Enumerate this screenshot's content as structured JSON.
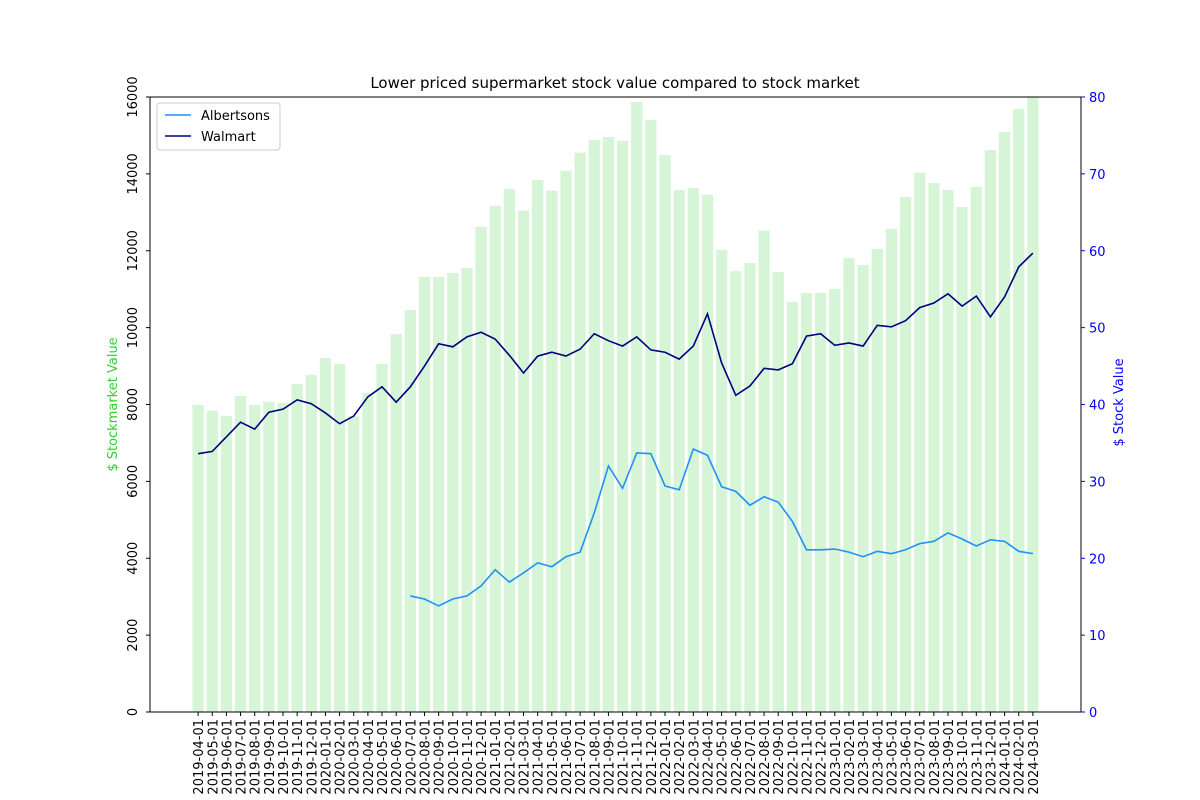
{
  "chart_data": {
    "type": "bar",
    "title": "Lower priced supermarket stock value compared to stock market",
    "ylabel": "$ Stockmarket Value",
    "y2label": "$ Stock Value",
    "ylabel_color": "#32cd32",
    "y2_color": "#0000ff",
    "color": "#d6f5d6",
    "legend": "upper left",
    "categories": [
      "2019-04-01",
      "2019-05-01",
      "2019-06-01",
      "2019-07-01",
      "2019-08-01",
      "2019-09-01",
      "2019-10-01",
      "2019-11-01",
      "2019-12-01",
      "2020-01-01",
      "2020-02-01",
      "2020-03-01",
      "2020-04-01",
      "2020-05-01",
      "2020-06-01",
      "2020-07-01",
      "2020-08-01",
      "2020-09-01",
      "2020-10-01",
      "2020-11-01",
      "2020-12-01",
      "2021-01-01",
      "2021-02-01",
      "2021-03-01",
      "2021-04-01",
      "2021-05-01",
      "2021-06-01",
      "2021-07-01",
      "2021-08-01",
      "2021-09-01",
      "2021-10-01",
      "2021-11-01",
      "2021-12-01",
      "2022-01-01",
      "2022-02-01",
      "2022-03-01",
      "2022-04-01",
      "2022-05-01",
      "2022-06-01",
      "2022-07-01",
      "2022-08-01",
      "2022-09-01",
      "2022-10-01",
      "2022-11-01",
      "2022-12-01",
      "2023-01-01",
      "2023-02-01",
      "2023-03-01",
      "2023-04-01",
      "2023-05-01",
      "2023-06-01",
      "2023-07-01",
      "2023-08-01",
      "2023-09-01",
      "2023-10-01",
      "2023-11-01",
      "2023-12-01",
      "2024-01-01",
      "2024-02-01",
      "2024-03-01"
    ],
    "values": [
      7990,
      7830,
      7700,
      8220,
      7990,
      8070,
      8040,
      8530,
      8770,
      9210,
      9050,
      7700,
      8300,
      9050,
      9830,
      10460,
      11320,
      11320,
      11420,
      11550,
      12620,
      13170,
      13610,
      13040,
      13840,
      13560,
      14080,
      14550,
      14880,
      14960,
      14860,
      15870,
      15400,
      14490,
      13580,
      13630,
      13450,
      12020,
      11470,
      11680,
      12520,
      11450,
      10670,
      10900,
      10900,
      11010,
      11810,
      11630,
      12050,
      12570,
      13400,
      14030,
      13760,
      13580,
      13140,
      13660,
      14620,
      15090,
      15690,
      16000
    ],
    "ylim": [
      0,
      16000
    ],
    "yticks": [
      0,
      2000,
      4000,
      6000,
      8000,
      10000,
      12000,
      14000,
      16000
    ],
    "y2lim": [
      0,
      80
    ],
    "y2ticks": [
      0,
      10,
      20,
      30,
      40,
      50,
      60,
      70,
      80
    ],
    "series": [
      {
        "name": "Albertsons",
        "color": "#1e90ff",
        "axis": "y2",
        "values": [
          null,
          null,
          null,
          null,
          null,
          null,
          null,
          null,
          null,
          null,
          null,
          null,
          null,
          null,
          null,
          15.1,
          14.7,
          13.8,
          14.7,
          15.1,
          16.4,
          18.5,
          16.9,
          18.1,
          19.4,
          18.9,
          20.2,
          20.8,
          25.9,
          32.0,
          29.1,
          33.7,
          33.6,
          29.4,
          28.9,
          34.2,
          33.4,
          29.3,
          28.7,
          26.9,
          28.0,
          27.3,
          24.8,
          21.1,
          21.1,
          21.2,
          20.8,
          20.2,
          20.9,
          20.6,
          21.1,
          21.9,
          22.2,
          23.3,
          22.5,
          21.6,
          22.4,
          22.2,
          20.9,
          20.6
        ]
      },
      {
        "name": "Walmart",
        "color": "#000080",
        "axis": "y2",
        "values": [
          33.6,
          33.9,
          35.8,
          37.7,
          36.8,
          39.0,
          39.4,
          40.6,
          40.1,
          38.9,
          37.5,
          38.5,
          41.0,
          42.3,
          40.3,
          42.3,
          45.0,
          47.9,
          47.5,
          48.8,
          49.4,
          48.5,
          46.4,
          44.1,
          46.3,
          46.8,
          46.3,
          47.2,
          49.2,
          48.3,
          47.6,
          48.8,
          47.1,
          46.8,
          45.9,
          47.6,
          51.8,
          45.4,
          41.2,
          42.4,
          44.7,
          44.5,
          45.3,
          48.9,
          49.2,
          47.7,
          48.0,
          47.6,
          50.3,
          50.1,
          50.9,
          52.6,
          53.2,
          54.4,
          52.8,
          54.1,
          51.4,
          54.0,
          57.9,
          59.7
        ]
      }
    ]
  }
}
